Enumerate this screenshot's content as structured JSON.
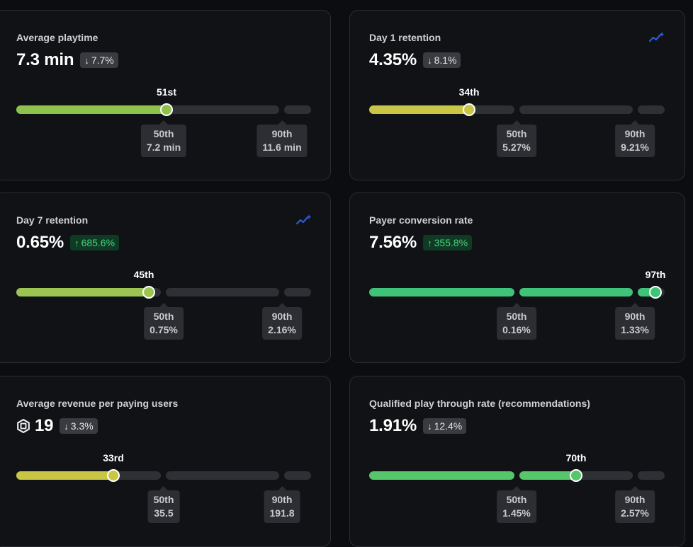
{
  "colors": {
    "green_light": "#8fc24d",
    "yellow": "#c9c646",
    "green": "#3fc379",
    "track": "#2f3035",
    "trend_icon": "#2a5bd7"
  },
  "cards": [
    {
      "title": "Average playtime",
      "value": "7.3 min",
      "change": "7.7%",
      "change_direction": "down",
      "rank": "51st",
      "ticks": [
        {
          "label": "50th",
          "value": "7.2 min"
        },
        {
          "label": "90th",
          "value": "11.6 min"
        }
      ],
      "icon": "none",
      "fill_color": "#8fc24d"
    },
    {
      "title": "Day 1 retention",
      "value": "4.35%",
      "change": "8.1%",
      "change_direction": "down",
      "rank": "34th",
      "ticks": [
        {
          "label": "50th",
          "value": "5.27%"
        },
        {
          "label": "90th",
          "value": "9.21%"
        }
      ],
      "icon": "trend-sparkle-icon",
      "fill_color": "#c9c646"
    },
    {
      "title": "Day 7 retention",
      "value": "0.65%",
      "change": "685.6%",
      "change_direction": "up",
      "rank": "45th",
      "ticks": [
        {
          "label": "50th",
          "value": "0.75%"
        },
        {
          "label": "90th",
          "value": "2.16%"
        }
      ],
      "icon": "trend-sparkle-icon",
      "fill_color": "#9cc452"
    },
    {
      "title": "Payer conversion rate",
      "value": "7.56%",
      "change": "355.8%",
      "change_direction": "up",
      "rank": "97th",
      "ticks": [
        {
          "label": "50th",
          "value": "0.16%"
        },
        {
          "label": "90th",
          "value": "1.33%"
        }
      ],
      "icon": "none",
      "fill_color": "#3fc379"
    },
    {
      "title": "Average revenue per paying users",
      "value": "19",
      "change": "3.3%",
      "change_direction": "down",
      "rank": "33rd",
      "ticks": [
        {
          "label": "50th",
          "value": "35.5"
        },
        {
          "label": "90th",
          "value": "191.8"
        }
      ],
      "icon": "robux-icon",
      "fill_color": "#c9c646"
    },
    {
      "title": "Qualified play through rate (recommendations)",
      "value": "1.91%",
      "change": "12.4%",
      "change_direction": "down",
      "rank": "70th",
      "ticks": [
        {
          "label": "50th",
          "value": "1.45%"
        },
        {
          "label": "90th",
          "value": "2.57%"
        }
      ],
      "icon": "none",
      "fill_color": "#55c66a"
    }
  ]
}
